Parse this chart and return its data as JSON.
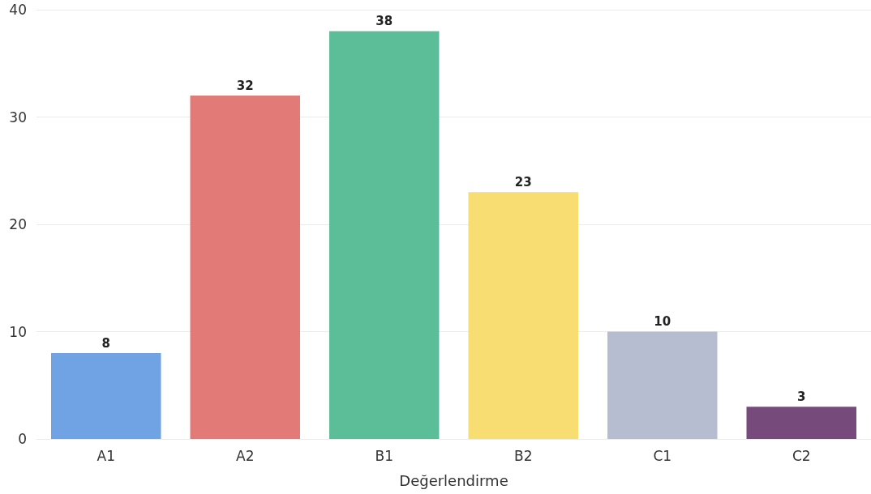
{
  "chart_data": {
    "type": "bar",
    "xlabel": "Değerlendirme",
    "categories": [
      "A1",
      "A2",
      "B1",
      "B2",
      "C1",
      "C2"
    ],
    "values": [
      8,
      32,
      38,
      23,
      10,
      3
    ],
    "colors": [
      "#6fa3e3",
      "#e27b77",
      "#5cbe99",
      "#f7dd72",
      "#b6bdd0",
      "#764a7a"
    ],
    "ylim": [
      0,
      40
    ],
    "yticks": [
      0,
      10,
      20,
      30,
      40
    ],
    "grid": "y",
    "data_labels": true
  }
}
